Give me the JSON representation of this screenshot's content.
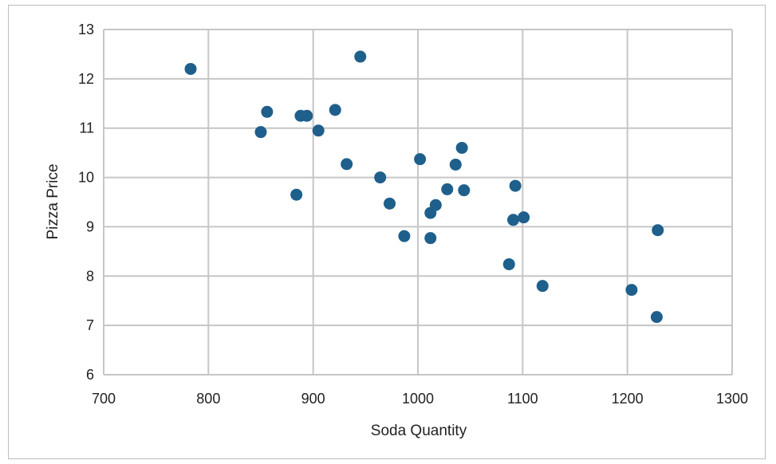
{
  "chart_data": {
    "type": "scatter",
    "xlabel": "Soda Quantity",
    "ylabel": "Pizza Price",
    "xlim": [
      700,
      1300
    ],
    "ylim": [
      6,
      13
    ],
    "xticks": [
      700,
      800,
      900,
      1000,
      1100,
      1200,
      1300
    ],
    "yticks": [
      6,
      7,
      8,
      9,
      10,
      11,
      12,
      13
    ],
    "grid": true,
    "marker_color": "#1f5f8b",
    "grid_color": "#c6c6c6",
    "points": [
      {
        "x": 783,
        "y": 12.2
      },
      {
        "x": 945,
        "y": 12.45
      },
      {
        "x": 856,
        "y": 11.33
      },
      {
        "x": 888,
        "y": 11.25
      },
      {
        "x": 894,
        "y": 11.25
      },
      {
        "x": 921,
        "y": 11.37
      },
      {
        "x": 850,
        "y": 10.92
      },
      {
        "x": 905,
        "y": 10.95
      },
      {
        "x": 1042,
        "y": 10.6
      },
      {
        "x": 932,
        "y": 10.27
      },
      {
        "x": 1002,
        "y": 10.37
      },
      {
        "x": 1036,
        "y": 10.26
      },
      {
        "x": 964,
        "y": 10.0
      },
      {
        "x": 884,
        "y": 9.65
      },
      {
        "x": 1028,
        "y": 9.76
      },
      {
        "x": 1044,
        "y": 9.74
      },
      {
        "x": 1093,
        "y": 9.83
      },
      {
        "x": 973,
        "y": 9.47
      },
      {
        "x": 1017,
        "y": 9.44
      },
      {
        "x": 1012,
        "y": 9.28
      },
      {
        "x": 1091,
        "y": 9.14
      },
      {
        "x": 1101,
        "y": 9.19
      },
      {
        "x": 987,
        "y": 8.81
      },
      {
        "x": 1012,
        "y": 8.77
      },
      {
        "x": 1229,
        "y": 8.93
      },
      {
        "x": 1087,
        "y": 8.24
      },
      {
        "x": 1119,
        "y": 7.8
      },
      {
        "x": 1204,
        "y": 7.72
      },
      {
        "x": 1228,
        "y": 7.17
      }
    ]
  }
}
